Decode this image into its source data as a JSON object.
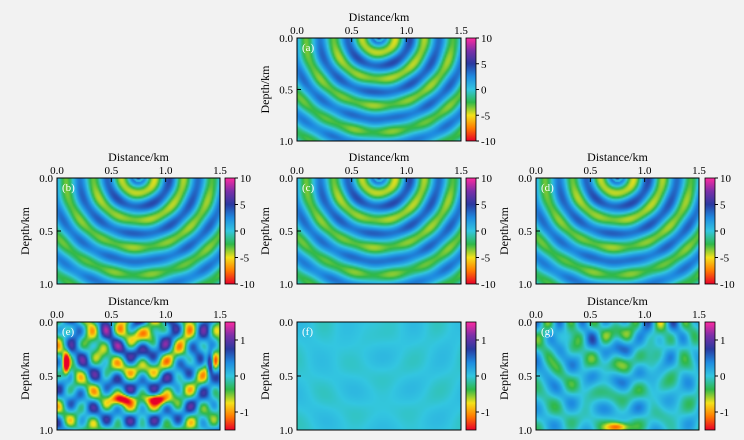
{
  "chart_data": [
    {
      "id": "a",
      "type": "heatmap",
      "panel_label": "(a)",
      "title": "",
      "xlabel": "Distance/km",
      "ylabel": "Depth/km",
      "xlim": [
        0,
        1.5
      ],
      "ylim": [
        0,
        1.0
      ],
      "x_ticks": [
        "0.0",
        "0.5",
        "1.0",
        "1.5"
      ],
      "y_ticks": [
        "0.0",
        "0.5",
        "1.0"
      ],
      "color_range": [
        -10,
        10
      ],
      "colorbar_ticks": [
        "10",
        "5",
        "0",
        "-5",
        "-10"
      ],
      "source_x": 0.75,
      "pattern": "wavefield"
    },
    {
      "id": "b",
      "type": "heatmap",
      "panel_label": "(b)",
      "title": "",
      "xlabel": "Distance/km",
      "ylabel": "Depth/km",
      "xlim": [
        0,
        1.5
      ],
      "ylim": [
        0,
        1.0
      ],
      "x_ticks": [
        "0.0",
        "0.5",
        "1.0",
        "1.5"
      ],
      "y_ticks": [
        "0.0",
        "0.5",
        "1.0"
      ],
      "color_range": [
        -10,
        10
      ],
      "colorbar_ticks": [
        "10",
        "5",
        "0",
        "-5",
        "-10"
      ],
      "source_x": 0.75,
      "pattern": "wavefield"
    },
    {
      "id": "c",
      "type": "heatmap",
      "panel_label": "(c)",
      "title": "",
      "xlabel": "Distance/km",
      "ylabel": "Depth/km",
      "xlim": [
        0,
        1.5
      ],
      "ylim": [
        0,
        1.0
      ],
      "x_ticks": [
        "0.0",
        "0.5",
        "1.0",
        "1.5"
      ],
      "y_ticks": [
        "0.0",
        "0.5",
        "1.0"
      ],
      "color_range": [
        -10,
        10
      ],
      "colorbar_ticks": [
        "10",
        "5",
        "0",
        "-5",
        "-10"
      ],
      "source_x": 0.75,
      "pattern": "wavefield"
    },
    {
      "id": "d",
      "type": "heatmap",
      "panel_label": "(d)",
      "title": "",
      "xlabel": "Distance/km",
      "ylabel": "Depth/km",
      "xlim": [
        0,
        1.5
      ],
      "ylim": [
        0,
        1.0
      ],
      "x_ticks": [
        "0.0",
        "0.5",
        "1.0",
        "1.5"
      ],
      "y_ticks": [
        "0.0",
        "0.5",
        "1.0"
      ],
      "color_range": [
        -10,
        10
      ],
      "colorbar_ticks": [
        "10",
        "5",
        "0",
        "-5",
        "-10"
      ],
      "source_x": 0.75,
      "pattern": "wavefield"
    },
    {
      "id": "e",
      "type": "heatmap",
      "panel_label": "(e)",
      "title": "",
      "xlabel": "Distance/km",
      "ylabel": "Depth/km",
      "xlim": [
        0,
        1.5
      ],
      "ylim": [
        0,
        1.0
      ],
      "x_ticks": [
        "0.0",
        "0.5",
        "1.0",
        "1.5"
      ],
      "y_ticks": [
        "0.0",
        "0.5",
        "1.0"
      ],
      "color_range": [
        -1.5,
        1.5
      ],
      "colorbar_ticks": [
        "1",
        "0",
        "-1"
      ],
      "source_x": 0.75,
      "pattern": "residual_strong"
    },
    {
      "id": "f",
      "type": "heatmap",
      "panel_label": "(f)",
      "title": "",
      "xlabel": "",
      "ylabel": "Depth/km",
      "xlim": [
        0,
        1.5
      ],
      "ylim": [
        0,
        1.0
      ],
      "x_ticks": [],
      "y_ticks": [
        "0.0",
        "0.5",
        "1.0"
      ],
      "color_range": [
        -1.5,
        1.5
      ],
      "colorbar_ticks": [
        "1",
        "0",
        "-1"
      ],
      "source_x": 0.75,
      "pattern": "residual_flat"
    },
    {
      "id": "g",
      "type": "heatmap",
      "panel_label": "(g)",
      "title": "",
      "xlabel": "Distance/km",
      "ylabel": "Depth/km",
      "xlim": [
        0,
        1.5
      ],
      "ylim": [
        0,
        1.0
      ],
      "x_ticks": [
        "0.0",
        "0.5",
        "1.0",
        "1.5"
      ],
      "y_ticks": [
        "0.0",
        "0.5",
        "1.0"
      ],
      "color_range": [
        -1.5,
        1.5
      ],
      "colorbar_ticks": [
        "1",
        "0",
        "-1"
      ],
      "source_x": 0.75,
      "pattern": "residual_weak"
    }
  ],
  "colormap": [
    "#e8002a",
    "#ff7a00",
    "#f4e21a",
    "#2fb84a",
    "#33c6e0",
    "#1e8be0",
    "#2a3aa0",
    "#7b2fa8",
    "#ff2aa0"
  ]
}
